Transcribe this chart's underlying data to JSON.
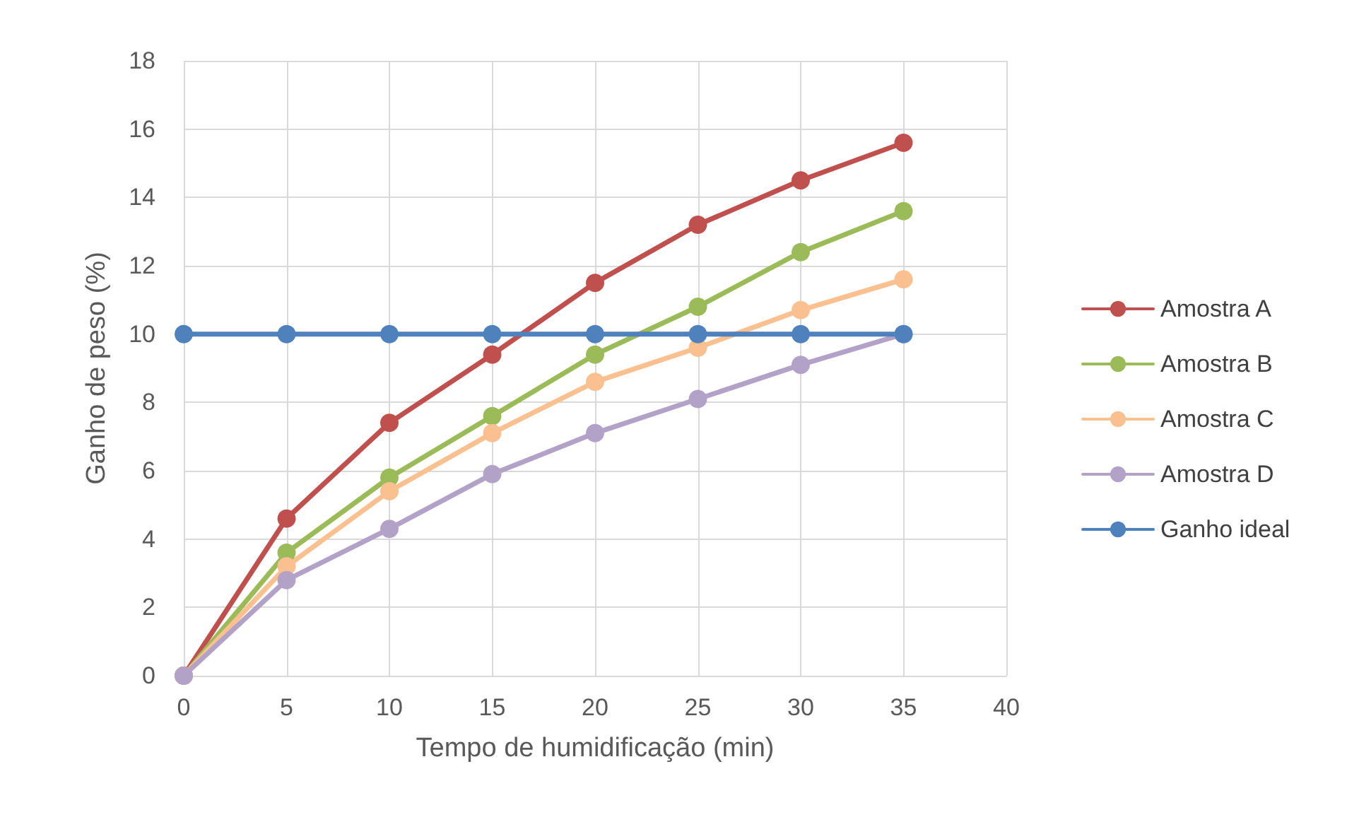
{
  "chart_data": {
    "type": "line",
    "xlabel": "Tempo de humidificação (min)",
    "ylabel": "Ganho de peso (%)",
    "x": [
      0,
      5,
      10,
      15,
      20,
      25,
      30,
      35
    ],
    "series": [
      {
        "name": "Amostra A",
        "color": "#c0504d",
        "values": [
          0,
          4.6,
          7.4,
          9.4,
          11.5,
          13.2,
          14.5,
          15.6
        ]
      },
      {
        "name": "Amostra B",
        "color": "#9bbb59",
        "values": [
          0,
          3.6,
          5.8,
          7.6,
          9.4,
          10.8,
          12.4,
          13.6
        ]
      },
      {
        "name": "Amostra C",
        "color": "#fac090",
        "values": [
          0,
          3.2,
          5.4,
          7.1,
          8.6,
          9.6,
          10.7,
          11.6
        ]
      },
      {
        "name": "Amostra D",
        "color": "#b3a2c7",
        "values": [
          0,
          2.8,
          4.3,
          5.9,
          7.1,
          8.1,
          9.1,
          10.0
        ]
      },
      {
        "name": "Ganho ideal",
        "color": "#4f81bd",
        "values": [
          10,
          10,
          10,
          10,
          10,
          10,
          10,
          10
        ]
      }
    ],
    "xlim": [
      0,
      40
    ],
    "xticks": [
      0,
      5,
      10,
      15,
      20,
      25,
      30,
      35,
      40
    ],
    "ylim": [
      0,
      18
    ],
    "yticks": [
      0,
      2,
      4,
      6,
      8,
      10,
      12,
      14,
      16,
      18
    ],
    "grid": true,
    "legend": "right",
    "marker": "circle",
    "line_style": "solid"
  }
}
